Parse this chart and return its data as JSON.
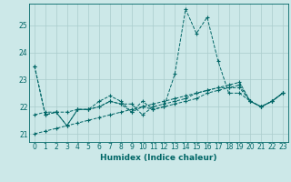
{
  "xlabel": "Humidex (Indice chaleur)",
  "bg_color": "#cce8e8",
  "grid_color": "#aacccc",
  "line_color": "#006666",
  "xlim": [
    -0.5,
    23.5
  ],
  "ylim": [
    20.7,
    25.8
  ],
  "yticks": [
    21,
    22,
    23,
    24,
    25
  ],
  "xticks": [
    0,
    1,
    2,
    3,
    4,
    5,
    6,
    7,
    8,
    9,
    10,
    11,
    12,
    13,
    14,
    15,
    16,
    17,
    18,
    19,
    20,
    21,
    22,
    23
  ],
  "series": [
    [
      21.7,
      21.8,
      21.8,
      21.3,
      21.9,
      21.9,
      22.2,
      22.4,
      22.2,
      21.8,
      22.2,
      21.9,
      22.0,
      23.2,
      25.6,
      24.7,
      25.3,
      23.7,
      22.5,
      22.5,
      22.2,
      22.0,
      22.2,
      22.5
    ],
    [
      23.5,
      21.7,
      21.8,
      21.8,
      21.9,
      21.9,
      22.0,
      22.2,
      22.1,
      22.1,
      21.7,
      22.0,
      22.1,
      22.2,
      22.3,
      22.5,
      22.6,
      22.7,
      22.7,
      22.8,
      22.2,
      22.0,
      22.2,
      22.5
    ],
    [
      23.5,
      21.7,
      21.8,
      21.3,
      21.9,
      21.9,
      22.0,
      22.2,
      22.1,
      21.8,
      22.0,
      21.9,
      22.0,
      22.1,
      22.2,
      22.3,
      22.5,
      22.6,
      22.7,
      22.7,
      22.2,
      22.0,
      22.2,
      22.5
    ],
    [
      21.0,
      21.1,
      21.2,
      21.3,
      21.4,
      21.5,
      21.6,
      21.7,
      21.8,
      21.9,
      22.0,
      22.1,
      22.2,
      22.3,
      22.4,
      22.5,
      22.6,
      22.7,
      22.8,
      22.9,
      22.2,
      22.0,
      22.2,
      22.5
    ]
  ],
  "tick_fontsize": 5.5,
  "xlabel_fontsize": 6.5
}
